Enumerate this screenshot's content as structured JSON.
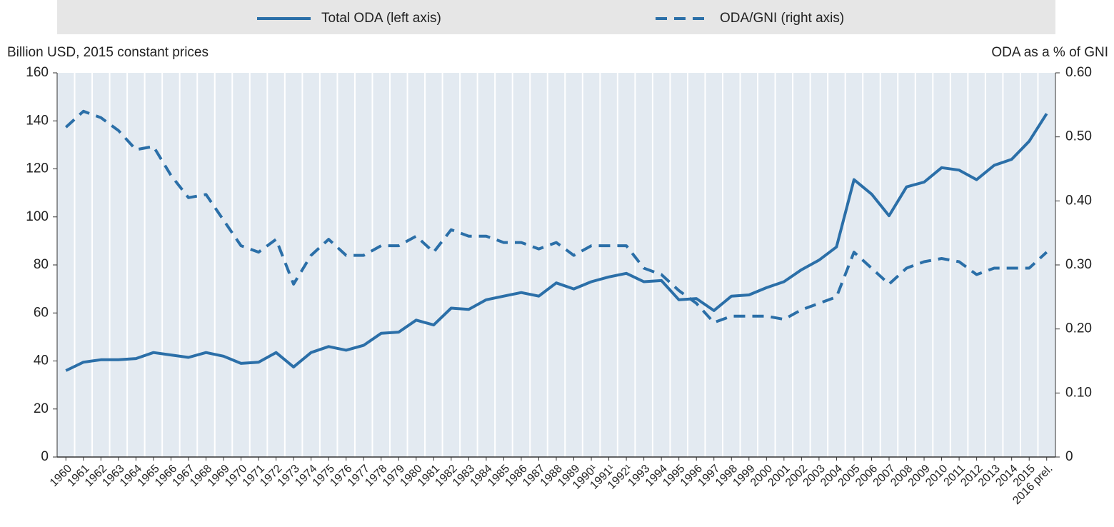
{
  "chart_data": {
    "type": "line",
    "y_label": "Billion USD, 2015 constant prices",
    "y2_label": "ODA as a % of GNI",
    "categories": [
      "1960",
      "1961",
      "1962",
      "1963",
      "1964",
      "1965",
      "1966",
      "1967",
      "1968",
      "1969",
      "1970",
      "1971",
      "1972",
      "1973",
      "1974",
      "1975",
      "1976",
      "1977",
      "1978",
      "1979",
      "1980",
      "1981",
      "1982",
      "1983",
      "1984",
      "1985",
      "1986",
      "1987",
      "1988",
      "1989",
      "1990¹",
      "1991¹",
      "1992¹",
      "1993",
      "1994",
      "1995",
      "1996",
      "1997",
      "1998",
      "1999",
      "2000",
      "2001",
      "2002",
      "2003",
      "2004",
      "2005",
      "2006",
      "2007",
      "2008",
      "2009",
      "2010",
      "2011",
      "2012",
      "2013",
      "2014",
      "2015",
      "2016 prel."
    ],
    "series": [
      {
        "name": "Total ODA (left axis)",
        "color": "#2b6fa8",
        "style": "solid",
        "values": [
          36,
          39.5,
          40.5,
          40.5,
          41,
          43.5,
          42.5,
          41.5,
          43.5,
          42,
          39,
          39.5,
          43.5,
          37.5,
          43.5,
          46,
          44.5,
          46.5,
          51.5,
          52,
          57,
          55,
          62,
          61.5,
          65.5,
          67,
          68.5,
          67,
          72.5,
          70,
          73,
          75,
          76.5,
          73,
          73.5,
          65.5,
          66,
          61,
          67,
          67.5,
          70.5,
          73,
          78,
          82,
          87.5,
          115.5,
          109.5,
          100.5,
          112.5,
          114.5,
          120.5,
          119.5,
          115.5,
          121.5,
          124,
          131.5,
          143
        ]
      },
      {
        "name": "ODA/GNI (right axis)",
        "color": "#2b6fa8",
        "style": "dashed",
        "axis": "y2",
        "values": [
          0.515,
          0.54,
          0.53,
          0.51,
          0.48,
          0.485,
          0.44,
          0.405,
          0.41,
          0.37,
          0.33,
          0.32,
          0.34,
          0.27,
          0.315,
          0.34,
          0.315,
          0.315,
          0.33,
          0.33,
          0.345,
          0.32,
          0.355,
          0.345,
          0.345,
          0.335,
          0.335,
          0.325,
          0.335,
          0.315,
          0.33,
          0.33,
          0.33,
          0.295,
          0.285,
          0.26,
          0.24,
          0.21,
          0.22,
          0.22,
          0.22,
          0.215,
          0.23,
          0.24,
          0.25,
          0.32,
          0.295,
          0.27,
          0.295,
          0.305,
          0.31,
          0.305,
          0.285,
          0.295,
          0.295,
          0.295,
          0.32
        ]
      }
    ],
    "ylim": [
      0,
      160
    ],
    "yticks": [
      0,
      20,
      40,
      60,
      80,
      100,
      120,
      140,
      160
    ],
    "y2lim": [
      0,
      0.6
    ],
    "y2ticks": [
      0,
      {
        "value": 0.1,
        "label": "0.10"
      },
      {
        "value": 0.2,
        "label": "0.20"
      },
      {
        "value": 0.3,
        "label": "0.30"
      },
      {
        "value": 0.4,
        "label": "0.40"
      },
      {
        "value": 0.5,
        "label": "0.50"
      },
      {
        "value": 0.6,
        "label": "0.60"
      }
    ],
    "legend": "top"
  }
}
